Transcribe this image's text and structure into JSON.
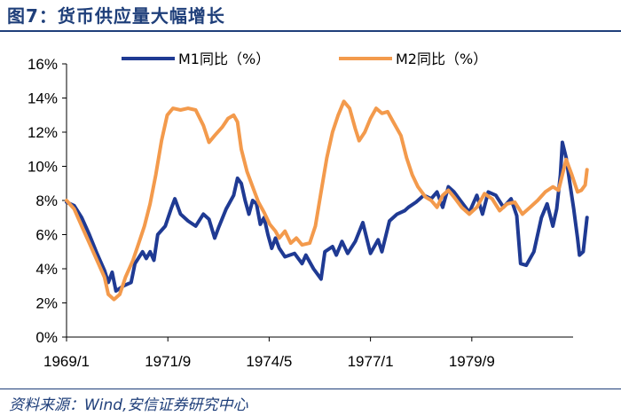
{
  "figure": {
    "title": "图7：货币供应量大幅增长",
    "source": "资料来源：Wind,安信证券研究中心"
  },
  "chart_data": {
    "type": "line",
    "title": "",
    "xlabel": "",
    "ylabel": "",
    "ylim": [
      0,
      16
    ],
    "xlim": [
      1969.0,
      1982.333
    ],
    "yticks": [
      "0%",
      "2%",
      "4%",
      "6%",
      "8%",
      "10%",
      "12%",
      "14%",
      "16%"
    ],
    "xticks": [
      "1969/1",
      "1971/9",
      "1974/5",
      "1977/1",
      "1979/9"
    ],
    "xtick_values": [
      1969.0,
      1971.667,
      1974.333,
      1977.0,
      1979.667
    ],
    "grid": false,
    "legend_position": "top",
    "series": [
      {
        "name": "M1同比（%）",
        "color": "#1f3a93",
        "points": [
          [
            1969.0,
            7.9
          ],
          [
            1969.2,
            7.7
          ],
          [
            1969.4,
            7.0
          ],
          [
            1969.6,
            6.0
          ],
          [
            1969.8,
            4.9
          ],
          [
            1970.0,
            3.9
          ],
          [
            1970.1,
            3.2
          ],
          [
            1970.2,
            3.8
          ],
          [
            1970.3,
            2.7
          ],
          [
            1970.5,
            3.0
          ],
          [
            1970.7,
            3.2
          ],
          [
            1970.8,
            4.3
          ],
          [
            1971.0,
            5.0
          ],
          [
            1971.1,
            4.6
          ],
          [
            1971.2,
            5.0
          ],
          [
            1971.3,
            4.5
          ],
          [
            1971.4,
            6.0
          ],
          [
            1971.6,
            6.5
          ],
          [
            1971.75,
            7.5
          ],
          [
            1971.85,
            8.1
          ],
          [
            1972.0,
            7.2
          ],
          [
            1972.2,
            6.8
          ],
          [
            1972.4,
            6.5
          ],
          [
            1972.6,
            7.2
          ],
          [
            1972.75,
            6.9
          ],
          [
            1972.9,
            5.8
          ],
          [
            1973.0,
            6.4
          ],
          [
            1973.2,
            7.5
          ],
          [
            1973.4,
            8.3
          ],
          [
            1973.5,
            9.3
          ],
          [
            1973.6,
            9.0
          ],
          [
            1973.7,
            8.0
          ],
          [
            1973.8,
            7.2
          ],
          [
            1973.9,
            8.0
          ],
          [
            1974.0,
            7.8
          ],
          [
            1974.1,
            6.6
          ],
          [
            1974.2,
            7.0
          ],
          [
            1974.3,
            6.0
          ],
          [
            1974.4,
            5.2
          ],
          [
            1974.5,
            5.8
          ],
          [
            1974.6,
            5.2
          ],
          [
            1974.75,
            4.7
          ],
          [
            1975.0,
            4.9
          ],
          [
            1975.2,
            4.3
          ],
          [
            1975.3,
            4.8
          ],
          [
            1975.5,
            4.0
          ],
          [
            1975.7,
            3.4
          ],
          [
            1975.8,
            5.0
          ],
          [
            1976.0,
            5.3
          ],
          [
            1976.1,
            4.8
          ],
          [
            1976.25,
            5.6
          ],
          [
            1976.4,
            4.9
          ],
          [
            1976.6,
            5.6
          ],
          [
            1976.8,
            6.7
          ],
          [
            1977.0,
            4.9
          ],
          [
            1977.2,
            5.7
          ],
          [
            1977.3,
            5.0
          ],
          [
            1977.5,
            6.8
          ],
          [
            1977.7,
            7.2
          ],
          [
            1977.9,
            7.4
          ],
          [
            1978.0,
            7.6
          ],
          [
            1978.2,
            7.9
          ],
          [
            1978.4,
            8.3
          ],
          [
            1978.6,
            8.1
          ],
          [
            1978.75,
            8.5
          ],
          [
            1978.9,
            7.6
          ],
          [
            1979.05,
            8.8
          ],
          [
            1979.2,
            8.5
          ],
          [
            1979.4,
            7.9
          ],
          [
            1979.6,
            7.3
          ],
          [
            1979.8,
            8.3
          ],
          [
            1979.95,
            7.2
          ],
          [
            1980.1,
            8.5
          ],
          [
            1980.3,
            8.3
          ],
          [
            1980.5,
            7.6
          ],
          [
            1980.7,
            8.1
          ],
          [
            1980.85,
            7.1
          ],
          [
            1980.95,
            4.3
          ],
          [
            1981.1,
            4.2
          ],
          [
            1981.3,
            5.0
          ],
          [
            1981.5,
            7.0
          ],
          [
            1981.65,
            7.8
          ],
          [
            1981.8,
            6.5
          ],
          [
            1981.9,
            7.5
          ],
          [
            1982.0,
            9.5
          ],
          [
            1982.05,
            11.4
          ],
          [
            1982.15,
            10.5
          ],
          [
            1982.25,
            9.0
          ],
          [
            1982.35,
            7.5
          ],
          [
            1982.45,
            5.8
          ],
          [
            1982.5,
            4.8
          ],
          [
            1982.6,
            5.0
          ],
          [
            1982.7,
            7.0
          ]
        ]
      },
      {
        "name": "M2同比（%）",
        "color": "#f39a4c",
        "points": [
          [
            1969.0,
            8.0
          ],
          [
            1969.2,
            7.5
          ],
          [
            1969.4,
            6.5
          ],
          [
            1969.6,
            5.5
          ],
          [
            1969.8,
            4.5
          ],
          [
            1970.0,
            3.5
          ],
          [
            1970.1,
            2.5
          ],
          [
            1970.25,
            2.2
          ],
          [
            1970.4,
            2.5
          ],
          [
            1970.55,
            3.5
          ],
          [
            1970.75,
            4.5
          ],
          [
            1970.9,
            5.5
          ],
          [
            1971.05,
            6.5
          ],
          [
            1971.2,
            7.8
          ],
          [
            1971.35,
            9.5
          ],
          [
            1971.5,
            11.5
          ],
          [
            1971.65,
            13.0
          ],
          [
            1971.8,
            13.4
          ],
          [
            1972.0,
            13.3
          ],
          [
            1972.2,
            13.4
          ],
          [
            1972.4,
            13.3
          ],
          [
            1972.6,
            12.4
          ],
          [
            1972.75,
            11.4
          ],
          [
            1972.9,
            11.8
          ],
          [
            1973.1,
            12.3
          ],
          [
            1973.25,
            12.8
          ],
          [
            1973.4,
            13.0
          ],
          [
            1973.5,
            12.6
          ],
          [
            1973.6,
            11.0
          ],
          [
            1973.75,
            9.7
          ],
          [
            1973.9,
            8.8
          ],
          [
            1974.05,
            7.9
          ],
          [
            1974.2,
            7.3
          ],
          [
            1974.35,
            6.6
          ],
          [
            1974.5,
            6.2
          ],
          [
            1974.6,
            5.8
          ],
          [
            1974.75,
            6.2
          ],
          [
            1974.9,
            5.5
          ],
          [
            1975.05,
            5.8
          ],
          [
            1975.2,
            5.4
          ],
          [
            1975.4,
            5.5
          ],
          [
            1975.55,
            6.5
          ],
          [
            1975.7,
            8.5
          ],
          [
            1975.85,
            10.5
          ],
          [
            1976.0,
            12.0
          ],
          [
            1976.15,
            13.0
          ],
          [
            1976.3,
            13.8
          ],
          [
            1976.45,
            13.4
          ],
          [
            1976.6,
            12.2
          ],
          [
            1976.7,
            11.5
          ],
          [
            1976.85,
            12.0
          ],
          [
            1977.0,
            12.8
          ],
          [
            1977.15,
            13.4
          ],
          [
            1977.3,
            13.1
          ],
          [
            1977.45,
            13.2
          ],
          [
            1977.6,
            12.6
          ],
          [
            1977.8,
            11.8
          ],
          [
            1977.95,
            10.5
          ],
          [
            1978.1,
            9.5
          ],
          [
            1978.25,
            8.8
          ],
          [
            1978.45,
            8.2
          ],
          [
            1978.6,
            8.0
          ],
          [
            1978.75,
            7.6
          ],
          [
            1978.9,
            8.3
          ],
          [
            1979.05,
            8.6
          ],
          [
            1979.2,
            8.2
          ],
          [
            1979.4,
            7.6
          ],
          [
            1979.6,
            7.2
          ],
          [
            1979.8,
            7.6
          ],
          [
            1980.0,
            8.4
          ],
          [
            1980.2,
            8.1
          ],
          [
            1980.4,
            7.4
          ],
          [
            1980.6,
            7.8
          ],
          [
            1980.8,
            7.9
          ],
          [
            1981.0,
            7.2
          ],
          [
            1981.2,
            7.6
          ],
          [
            1981.4,
            8.0
          ],
          [
            1981.6,
            8.5
          ],
          [
            1981.8,
            8.8
          ],
          [
            1981.95,
            8.6
          ],
          [
            1982.05,
            9.5
          ],
          [
            1982.15,
            10.4
          ],
          [
            1982.3,
            9.5
          ],
          [
            1982.45,
            8.5
          ],
          [
            1982.55,
            8.6
          ],
          [
            1982.65,
            8.9
          ],
          [
            1982.7,
            9.8
          ]
        ]
      }
    ]
  }
}
